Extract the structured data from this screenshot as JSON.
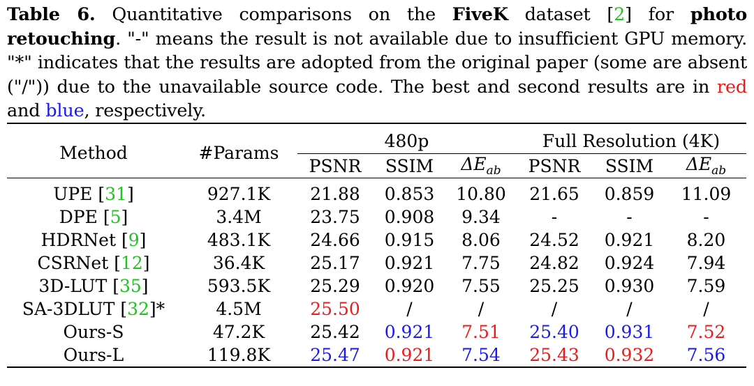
{
  "caption": {
    "label": "Table 6.",
    "text_1": " Quantitative comparisons on the ",
    "dataset": "FiveK",
    "text_2": " dataset [",
    "ref": "2",
    "text_3": "] for ",
    "task": "photo retouching",
    "text_4": ". \"-\" means the result is not available due to insufficient GPU memory. \"*\" indicates that the results are adopted from the original paper (some are absent (\"/\")) due to the unavailable source code. The best and second results are in ",
    "red_word": "red",
    "text_5": " and ",
    "blue_word": "blue",
    "text_6": ", respectively."
  },
  "table": {
    "col_method": "Method",
    "col_params": "#Params",
    "group_480p": "480p",
    "group_full": "Full Resolution (4K)",
    "psnr": "PSNR",
    "ssim": "SSIM",
    "delta_main": "ΔE",
    "delta_sub": "ab",
    "rows": [
      {
        "method": "UPE ",
        "ref": "31",
        "mark": "",
        "params": "927.1K",
        "v": [
          "21.88",
          "0.853",
          "10.80",
          "21.65",
          "0.859",
          "11.09"
        ],
        "c": [
          "",
          "",
          "",
          "",
          "",
          ""
        ]
      },
      {
        "method": "DPE ",
        "ref": "5",
        "mark": "",
        "params": "3.4M",
        "v": [
          "23.75",
          "0.908",
          "9.34",
          "-",
          "-",
          "-"
        ],
        "c": [
          "",
          "",
          "",
          "",
          "",
          ""
        ]
      },
      {
        "method": "HDRNet ",
        "ref": "9",
        "mark": "",
        "params": "483.1K",
        "v": [
          "24.66",
          "0.915",
          "8.06",
          "24.52",
          "0.921",
          "8.20"
        ],
        "c": [
          "",
          "",
          "",
          "",
          "",
          ""
        ]
      },
      {
        "method": "CSRNet ",
        "ref": "12",
        "mark": "",
        "params": "36.4K",
        "v": [
          "25.17",
          "0.921",
          "7.75",
          "24.82",
          "0.924",
          "7.94"
        ],
        "c": [
          "",
          "",
          "",
          "",
          "",
          ""
        ]
      },
      {
        "method": "3D-LUT ",
        "ref": "35",
        "mark": "",
        "params": "593.5K",
        "v": [
          "25.29",
          "0.920",
          "7.55",
          "25.25",
          "0.930",
          "7.59"
        ],
        "c": [
          "",
          "",
          "",
          "",
          "",
          ""
        ]
      },
      {
        "method": "SA-3DLUT ",
        "ref": "32",
        "mark": "*",
        "params": "4.5M",
        "v": [
          "25.50",
          "/",
          "/",
          "/",
          "/",
          "/"
        ],
        "c": [
          "red",
          "",
          "",
          "",
          "",
          ""
        ]
      },
      {
        "method": "Ours-S",
        "ref": "",
        "mark": "",
        "params": "47.2K",
        "v": [
          "25.42",
          "0.921",
          "7.51",
          "25.40",
          "0.931",
          "7.52"
        ],
        "c": [
          "",
          "blue",
          "red",
          "blue",
          "blue",
          "red"
        ]
      },
      {
        "method": "Ours-L",
        "ref": "",
        "mark": "",
        "params": "119.8K",
        "v": [
          "25.47",
          "0.921",
          "7.54",
          "25.43",
          "0.932",
          "7.56"
        ],
        "c": [
          "blue",
          "red",
          "blue",
          "red",
          "red",
          "blue"
        ]
      }
    ]
  }
}
